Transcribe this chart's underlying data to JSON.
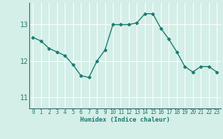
{
  "x": [
    0,
    1,
    2,
    3,
    4,
    5,
    6,
    7,
    8,
    9,
    10,
    11,
    12,
    13,
    14,
    15,
    16,
    17,
    18,
    19,
    20,
    21,
    22,
    23
  ],
  "y": [
    12.65,
    12.55,
    12.35,
    12.25,
    12.15,
    11.9,
    11.6,
    11.55,
    12.0,
    12.3,
    13.0,
    13.0,
    13.0,
    13.05,
    13.3,
    13.3,
    12.9,
    12.6,
    12.25,
    11.85,
    11.7,
    11.85,
    11.85,
    11.7
  ],
  "xlabel": "Humidex (Indice chaleur)",
  "ylim": [
    10.7,
    13.6
  ],
  "xlim": [
    -0.5,
    23.5
  ],
  "yticks": [
    11,
    12,
    13
  ],
  "xticks": [
    0,
    1,
    2,
    3,
    4,
    5,
    6,
    7,
    8,
    9,
    10,
    11,
    12,
    13,
    14,
    15,
    16,
    17,
    18,
    19,
    20,
    21,
    22,
    23
  ],
  "line_color": "#1a7a6e",
  "marker": "D",
  "marker_size": 2.5,
  "bg_color": "#d4eee8",
  "grid_color": "#ffffff",
  "axis_color": "#336666",
  "tick_label_color": "#1a7a6e",
  "xlabel_color": "#1a7a6e",
  "tick_fontsize": 5.5,
  "ylabel_fontsize": 7,
  "xlabel_fontsize": 6.5
}
